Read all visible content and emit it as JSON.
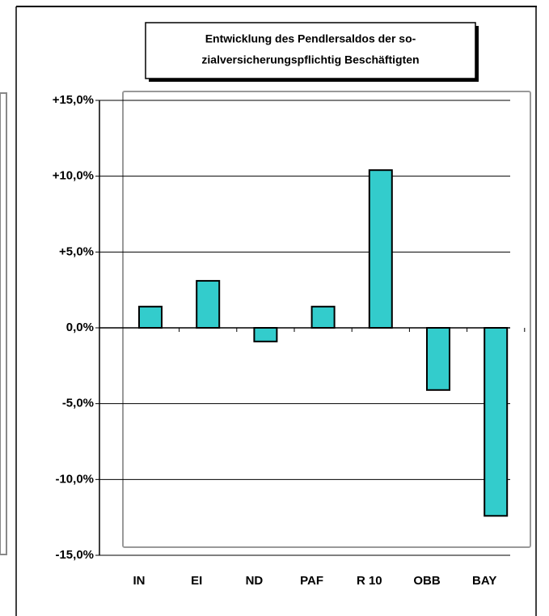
{
  "chart_data": {
    "type": "bar",
    "title_lines": [
      "Entwicklung des Pendlersaldos der so-",
      "zialversicherungspflichtig Beschäftigten"
    ],
    "categories": [
      "IN",
      "EI",
      "ND",
      "PAF",
      "R 10",
      "OBB",
      "BAY"
    ],
    "values": [
      1.4,
      3.1,
      -0.9,
      1.4,
      10.4,
      -4.1,
      -12.4
    ],
    "color": "#33cccc",
    "ylim": [
      -15,
      15
    ],
    "yticks": [
      {
        "value": -15,
        "label": "-15,0%"
      },
      {
        "value": -10,
        "label": "-10,0%"
      },
      {
        "value": -5,
        "label": "-5,0%"
      },
      {
        "value": 0,
        "label": "0,0%"
      },
      {
        "value": 5,
        "label": "+5,0%"
      },
      {
        "value": 10,
        "label": "+10,0%"
      },
      {
        "value": 15,
        "label": "+15,0%"
      }
    ],
    "grid": true
  }
}
